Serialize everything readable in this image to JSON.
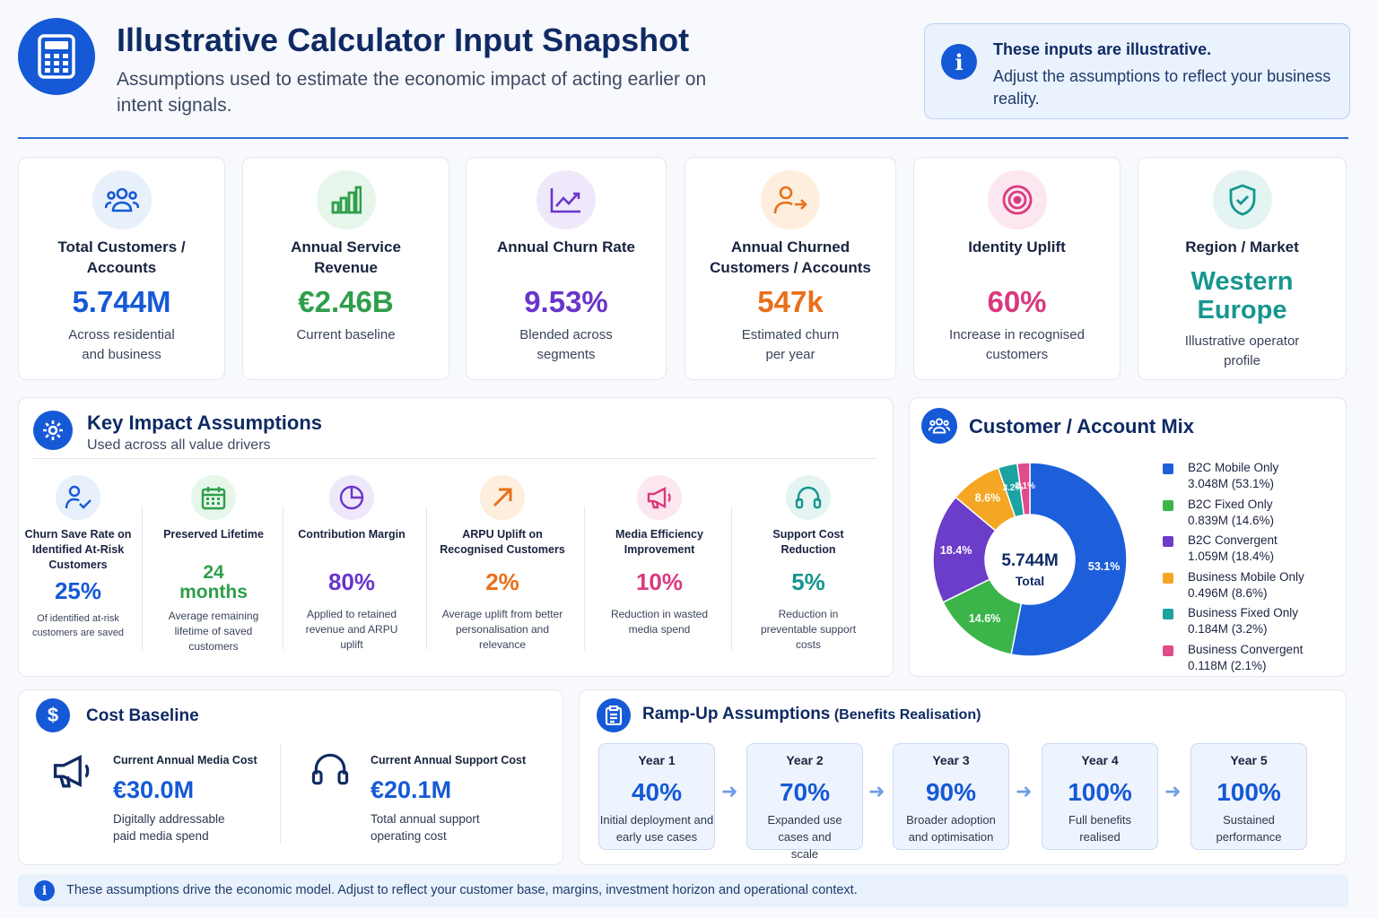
{
  "header": {
    "title": "Illustrative Calculator Input Snapshot",
    "subtitle": "Assumptions used to estimate the economic impact of acting earlier on intent signals.",
    "icon": "calculator-icon"
  },
  "notice": {
    "title": "These inputs are illustrative.",
    "body": "Adjust the assumptions to reflect your business reality.",
    "icon": "info-icon"
  },
  "kpis": [
    {
      "label": "Total Customers / Accounts",
      "value": "5.744M",
      "sub": "Across residential and business",
      "color": "#1559d6",
      "bg": "#e8f0fc",
      "icon": "users-icon"
    },
    {
      "label": "Annual Service Revenue",
      "value": "€2.46B",
      "sub": "Current baseline",
      "color": "#2e9e4a",
      "bg": "#e6f6ea",
      "icon": "bar-chart-icon"
    },
    {
      "label": "Annual Churn Rate",
      "value": "9.53%",
      "sub": "Blended across segments",
      "color": "#6a35c9",
      "bg": "#efe8fb",
      "icon": "trend-line-icon"
    },
    {
      "label": "Annual Churned Customers / Accounts",
      "value": "547k",
      "sub": "Estimated churn per year",
      "color": "#e9701a",
      "bg": "#fdeedd",
      "icon": "user-exit-icon"
    },
    {
      "label": "Identity Uplift",
      "value": "60%",
      "sub": "Increase in recognised customers",
      "color": "#d93a7e",
      "bg": "#fce6ef",
      "icon": "target-icon"
    },
    {
      "label": "Region / Market",
      "value": "Western Europe",
      "sub": "Illustrative operator profile",
      "color": "#16968f",
      "bg": "#e3f4f2",
      "icon": "shield-check-icon"
    }
  ],
  "impact": {
    "title": "Key Impact Assumptions",
    "subtitle": "Used across all value drivers",
    "icon": "gear-icon",
    "drivers": [
      {
        "label": "Churn Save Rate on Identified At-Risk Customers",
        "value": "25%",
        "sub": "Of identified at-risk customers are saved",
        "color": "#1559d6",
        "bg": "#e8f0fc",
        "icon": "user-check-icon"
      },
      {
        "label": "Preserved Lifetime",
        "value": "24 months",
        "sub": "Average remaining lifetime of saved customers",
        "color": "#2e9e4a",
        "bg": "#e6f6ea",
        "icon": "calendar-icon"
      },
      {
        "label": "Contribution Margin",
        "value": "80%",
        "sub": "Applied to retained revenue and ARPU uplift",
        "color": "#6a35c9",
        "bg": "#efe8fb",
        "icon": "pie-icon"
      },
      {
        "label": "ARPU Uplift on Recognised Customers",
        "value": "2%",
        "sub": "Average uplift from better personalisation and relevance",
        "color": "#e9701a",
        "bg": "#fdeedd",
        "icon": "arrow-up-right-icon"
      },
      {
        "label": "Media Efficiency Improvement",
        "value": "10%",
        "sub": "Reduction in wasted media spend",
        "color": "#d93a7e",
        "bg": "#fce6ef",
        "icon": "megaphone-icon"
      },
      {
        "label": "Support Cost Reduction",
        "value": "5%",
        "sub": "Reduction in preventable support costs",
        "color": "#16968f",
        "bg": "#e3f4f2",
        "icon": "headset-icon"
      }
    ]
  },
  "mix": {
    "title": "Customer / Account Mix",
    "icon": "users-icon",
    "center_value": "5.744M",
    "center_label": "Total"
  },
  "chart_data": {
    "type": "pie",
    "title": "Customer / Account Mix",
    "categories": [
      "B2C Mobile Only",
      "B2C Fixed Only",
      "B2C Convergent",
      "Business Mobile Only",
      "Business Fixed Only",
      "Business Convergent"
    ],
    "values": [
      53.1,
      14.6,
      18.4,
      8.6,
      3.2,
      2.1
    ],
    "counts": [
      "3.048M",
      "0.839M",
      "1.059M",
      "0.496M",
      "0.184M",
      "0.118M"
    ],
    "slice_labels": [
      "53.1%",
      "14.6%",
      "18.4%",
      "8.6%",
      "3.2%",
      "2.1%"
    ],
    "colors": [
      "#1d5fdb",
      "#3bb54a",
      "#6c3dc8",
      "#f5a623",
      "#1aa3a0",
      "#e04b8a"
    ],
    "legend_items": [
      "3.048M (53.1%)",
      "0.839M (14.6%)",
      "1.059M (18.4%)",
      "0.496M (8.6%)",
      "0.184M (3.2%)",
      "0.118M (2.1%)"
    ],
    "legend": "right"
  },
  "cost": {
    "title": "Cost Baseline",
    "icon": "dollar-icon",
    "items": [
      {
        "label": "Current Annual Media Cost",
        "value": "€30.0M",
        "sub": "Digitally addressable paid media spend",
        "icon": "megaphone-icon"
      },
      {
        "label": "Current Annual Support Cost",
        "value": "€20.1M",
        "sub": "Total annual support operating cost",
        "icon": "headset-icon"
      }
    ]
  },
  "ramp": {
    "title": "Ramp-Up Assumptions",
    "title_suffix": "(Benefits Realisation)",
    "icon": "clipboard-icon",
    "years": [
      {
        "year": "Year 1",
        "pct": "40%",
        "desc": "Initial deployment and early use cases"
      },
      {
        "year": "Year 2",
        "pct": "70%",
        "desc": "Expanded use cases and scale"
      },
      {
        "year": "Year 3",
        "pct": "90%",
        "desc": "Broader adoption and optimisation"
      },
      {
        "year": "Year 4",
        "pct": "100%",
        "desc": "Full benefits realised"
      },
      {
        "year": "Year 5",
        "pct": "100%",
        "desc": "Sustained performance"
      }
    ]
  },
  "footer": {
    "text": "These assumptions drive the economic model. Adjust to reflect your customer base, margins, investment horizon and operational context.",
    "icon": "info-icon"
  }
}
